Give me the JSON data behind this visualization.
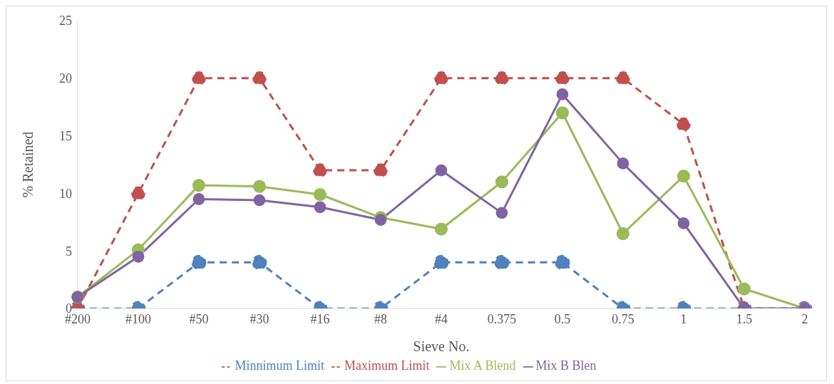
{
  "chart_data": {
    "type": "line",
    "xlabel": "Sieve No.",
    "ylabel": "% Retained",
    "categories": [
      "#200",
      "#100",
      "#50",
      "#30",
      "#16",
      "#8",
      "#4",
      "0.375",
      "0.5",
      "0.75",
      "1",
      "1.5",
      "2"
    ],
    "series": [
      {
        "name": "Minnimum Limit",
        "color": "#4f81bd",
        "line_style": "dashed",
        "values": [
          0,
          0,
          4,
          4,
          0,
          0,
          4,
          4,
          4,
          0,
          0,
          0,
          0
        ]
      },
      {
        "name": "Maximum Limit",
        "color": "#c0504d",
        "line_style": "dashed",
        "values": [
          0,
          10,
          20,
          20,
          12,
          12,
          20,
          20,
          20,
          20,
          16,
          0,
          0
        ]
      },
      {
        "name": "Mix A Blend",
        "color": "#9bbb59",
        "line_style": "solid",
        "values": [
          1.0,
          5.1,
          10.7,
          10.6,
          9.9,
          7.9,
          6.9,
          11.0,
          17.0,
          6.5,
          11.5,
          1.7,
          0
        ]
      },
      {
        "name": "Mix B Blen",
        "color": "#8064a2",
        "line_style": "solid",
        "values": [
          1.0,
          4.5,
          9.5,
          9.4,
          8.8,
          7.7,
          12.0,
          8.3,
          18.6,
          12.6,
          7.4,
          0,
          0
        ]
      }
    ],
    "ylim": [
      0,
      25
    ],
    "yticks": [
      0,
      5,
      10,
      15,
      20,
      25
    ],
    "grid": false,
    "legend": "bottom",
    "marker": "circle"
  }
}
